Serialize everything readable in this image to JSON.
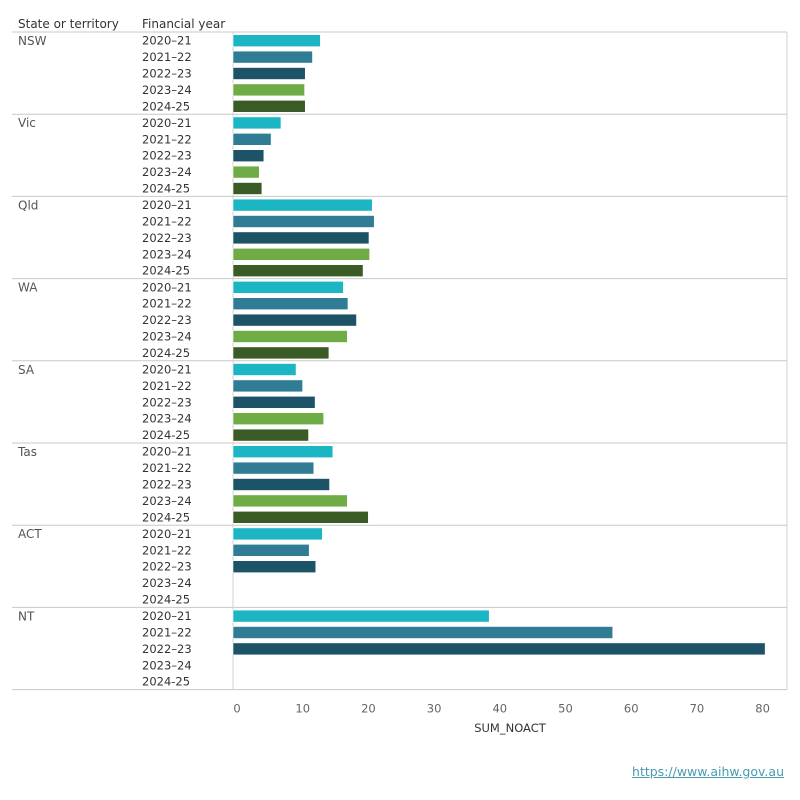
{
  "headers": {
    "state": "State or territory",
    "year": "Financial year"
  },
  "colors": {
    "2020–21": "#1cb5c4",
    "2021–22": "#2f7c94",
    "2022–23": "#1d5366",
    "2023–24": "#6fac46",
    "2024-25": "#3a5a26"
  },
  "chart_data": {
    "type": "bar",
    "orientation": "horizontal",
    "xlabel": "SUM_NOACT",
    "xlim": [
      0,
      84
    ],
    "xticks": [
      0,
      10,
      20,
      30,
      40,
      50,
      60,
      70,
      80
    ],
    "years": [
      "2020–21",
      "2021–22",
      "2022–23",
      "2023–24",
      "2024-25"
    ],
    "groups": [
      {
        "state": "NSW",
        "values": [
          13.3,
          12.1,
          11.0,
          10.9,
          11.0
        ]
      },
      {
        "state": "Vic",
        "values": [
          7.3,
          5.8,
          4.7,
          4.0,
          4.4
        ]
      },
      {
        "state": "Qld",
        "values": [
          21.2,
          21.5,
          20.7,
          20.8,
          19.8
        ]
      },
      {
        "state": "WA",
        "values": [
          16.8,
          17.5,
          18.8,
          17.4,
          14.6
        ]
      },
      {
        "state": "SA",
        "values": [
          9.6,
          10.6,
          12.5,
          13.8,
          11.5
        ]
      },
      {
        "state": "Tas",
        "values": [
          15.2,
          12.3,
          14.7,
          17.4,
          20.6
        ]
      },
      {
        "state": "ACT",
        "values": [
          13.6,
          11.6,
          12.6,
          null,
          null
        ]
      },
      {
        "state": "NT",
        "values": [
          39.0,
          57.8,
          81.0,
          null,
          null
        ]
      }
    ]
  },
  "footer": {
    "link_text": "https://www.aihw.gov.au"
  }
}
